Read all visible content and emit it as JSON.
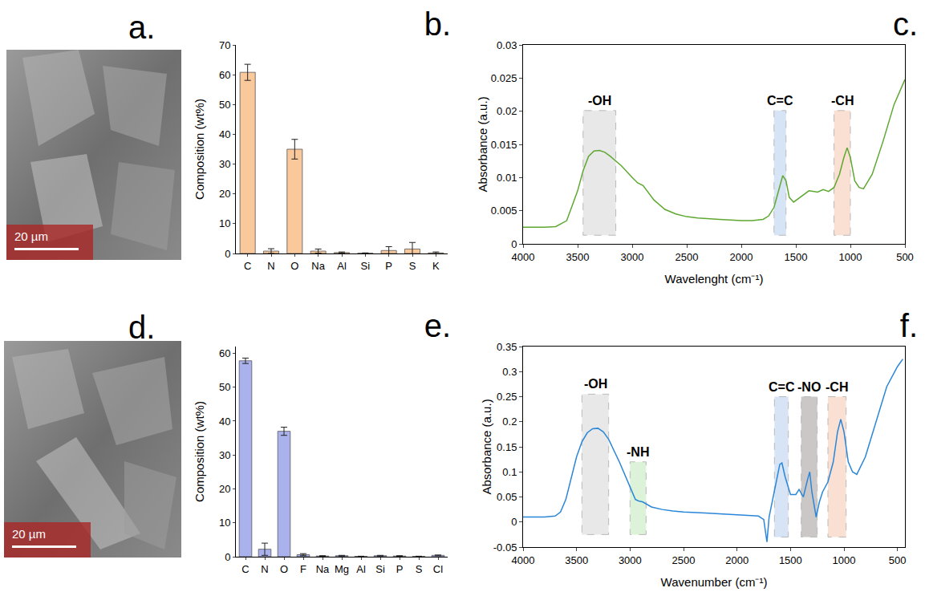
{
  "images": [
    {
      "panel": "a.",
      "scale_bar": "20 µm"
    },
    {
      "panel": "d.",
      "scale_bar": "20 µm"
    }
  ],
  "chart_data": [
    {
      "panel": "b.",
      "type": "bar",
      "y_label": "Composition (wt%)",
      "categories": [
        "C",
        "N",
        "O",
        "Na",
        "Al",
        "Si",
        "P",
        "S",
        "K"
      ],
      "values": [
        60.8,
        0.8,
        35.0,
        0.8,
        0.3,
        0.1,
        1.0,
        1.5,
        0.2
      ],
      "errors": [
        2.7,
        0.8,
        3.3,
        0.7,
        0.2,
        0.1,
        1.3,
        2.2,
        0.3
      ],
      "color": "#f9c89b",
      "ylim": [
        0,
        70
      ],
      "yticks": [
        0,
        10,
        20,
        30,
        40,
        50,
        60,
        70
      ],
      "grid": false
    },
    {
      "panel": "c.",
      "type": "line",
      "x_label": "Wavelenght (cm⁻¹)",
      "y_label": "Absorbance (a.u.)",
      "x": [
        4000,
        3800,
        3700,
        3600,
        3500,
        3450,
        3400,
        3350,
        3300,
        3250,
        3200,
        3100,
        3000,
        2950,
        2900,
        2800,
        2700,
        2600,
        2500,
        2400,
        2200,
        2000,
        1900,
        1800,
        1750,
        1700,
        1650,
        1620,
        1590,
        1560,
        1520,
        1480,
        1420,
        1380,
        1300,
        1250,
        1200,
        1150,
        1100,
        1060,
        1030,
        1000,
        960,
        920,
        880,
        800,
        700,
        600,
        500
      ],
      "values": [
        0.0025,
        0.0025,
        0.0026,
        0.0035,
        0.008,
        0.011,
        0.0132,
        0.014,
        0.0141,
        0.0138,
        0.0132,
        0.0118,
        0.01,
        0.0092,
        0.0088,
        0.0066,
        0.0052,
        0.0045,
        0.0041,
        0.0039,
        0.0037,
        0.0035,
        0.0035,
        0.0037,
        0.0042,
        0.0055,
        0.0085,
        0.0103,
        0.0095,
        0.007,
        0.0063,
        0.0068,
        0.0075,
        0.008,
        0.0078,
        0.0082,
        0.0079,
        0.0085,
        0.0105,
        0.013,
        0.0145,
        0.013,
        0.0095,
        0.0085,
        0.0083,
        0.0105,
        0.0155,
        0.021,
        0.0248
      ],
      "color": "#5ea832",
      "xlim": [
        4000,
        500
      ],
      "xticks": [
        4000,
        3500,
        3000,
        2500,
        2000,
        1500,
        1000,
        500
      ],
      "ylim": [
        0,
        0.03
      ],
      "yticks": [
        0,
        0.005,
        0.01,
        0.015,
        0.02,
        0.025,
        0.03
      ],
      "grid": false,
      "annotations": [
        {
          "text": "-OH",
          "x_range": [
            3150,
            3450
          ],
          "y_range": [
            0.0013,
            0.0201
          ],
          "color": "#d9d9d9"
        },
        {
          "text": "C=C",
          "x_range": [
            1590,
            1700
          ],
          "y_range": [
            0.0013,
            0.0201
          ],
          "color": "#bcd3f0"
        },
        {
          "text": "-CH",
          "x_range": [
            1000,
            1150
          ],
          "y_range": [
            0.0013,
            0.0201
          ],
          "color": "#f8cdb5"
        }
      ]
    },
    {
      "panel": "e.",
      "type": "bar",
      "y_label": "Composition (wt%)",
      "categories": [
        "C",
        "N",
        "O",
        "F",
        "Na",
        "Mg",
        "Al",
        "Si",
        "P",
        "S",
        "Cl"
      ],
      "values": [
        57.8,
        2.2,
        37.0,
        0.6,
        0.2,
        0.3,
        0.1,
        0.3,
        0.2,
        0.1,
        0.4
      ],
      "errors": [
        0.8,
        1.8,
        1.2,
        0.3,
        0.1,
        0.1,
        0.05,
        0.1,
        0.1,
        0.05,
        0.1
      ],
      "color": "#aab2ee",
      "ylim": [
        0,
        62
      ],
      "yticks": [
        0,
        10,
        20,
        30,
        40,
        50,
        60
      ],
      "grid": false
    },
    {
      "panel": "f.",
      "type": "line",
      "x_label": "Wavenumber (cm⁻¹)",
      "y_label": "Absorbance (a.u.)",
      "x": [
        4000,
        3800,
        3700,
        3650,
        3600,
        3550,
        3500,
        3450,
        3400,
        3350,
        3300,
        3250,
        3200,
        3100,
        3000,
        2950,
        2920,
        2880,
        2800,
        2700,
        2600,
        2500,
        2300,
        2100,
        1900,
        1800,
        1750,
        1720,
        1700,
        1650,
        1600,
        1580,
        1550,
        1500,
        1450,
        1420,
        1380,
        1340,
        1320,
        1300,
        1260,
        1230,
        1200,
        1150,
        1100,
        1060,
        1030,
        1000,
        960,
        920,
        880,
        800,
        700,
        600,
        500,
        450
      ],
      "values": [
        0.01,
        0.01,
        0.012,
        0.02,
        0.045,
        0.09,
        0.13,
        0.16,
        0.178,
        0.186,
        0.187,
        0.18,
        0.165,
        0.12,
        0.07,
        0.045,
        0.042,
        0.04,
        0.03,
        0.025,
        0.022,
        0.02,
        0.018,
        0.016,
        0.014,
        0.012,
        0.005,
        -0.04,
        0.01,
        0.06,
        0.115,
        0.118,
        0.09,
        0.055,
        0.055,
        0.065,
        0.05,
        0.085,
        0.1,
        0.06,
        0.01,
        0.04,
        0.06,
        0.08,
        0.12,
        0.18,
        0.205,
        0.18,
        0.12,
        0.1,
        0.095,
        0.13,
        0.2,
        0.27,
        0.31,
        0.325
      ],
      "color": "#2a86d8",
      "xlim": [
        4000,
        430
      ],
      "xticks": [
        4000,
        3500,
        3000,
        2500,
        2000,
        1500,
        1000,
        500
      ],
      "ylim": [
        -0.05,
        0.35
      ],
      "yticks": [
        -0.05,
        0,
        0.05,
        0.1,
        0.15,
        0.2,
        0.25,
        0.3,
        0.35
      ],
      "grid": false,
      "annotations": [
        {
          "text": "-OH",
          "x_range": [
            3200,
            3450
          ],
          "y_range": [
            -0.025,
            0.255
          ],
          "color": "#d9d9d9"
        },
        {
          "text": "-NH",
          "x_range": [
            2850,
            3000
          ],
          "y_range": [
            -0.025,
            0.12
          ],
          "color": "#c8ecc0"
        },
        {
          "text": "C=C",
          "x_range": [
            1520,
            1650
          ],
          "y_range": [
            -0.03,
            0.25
          ],
          "color": "#bcd3f0"
        },
        {
          "text": "-NO",
          "x_range": [
            1250,
            1400
          ],
          "y_range": [
            -0.03,
            0.25
          ],
          "color": "#a9a2a2"
        },
        {
          "text": "-CH",
          "x_range": [
            980,
            1150
          ],
          "y_range": [
            -0.03,
            0.25
          ],
          "color": "#f8cdb5"
        }
      ]
    }
  ]
}
